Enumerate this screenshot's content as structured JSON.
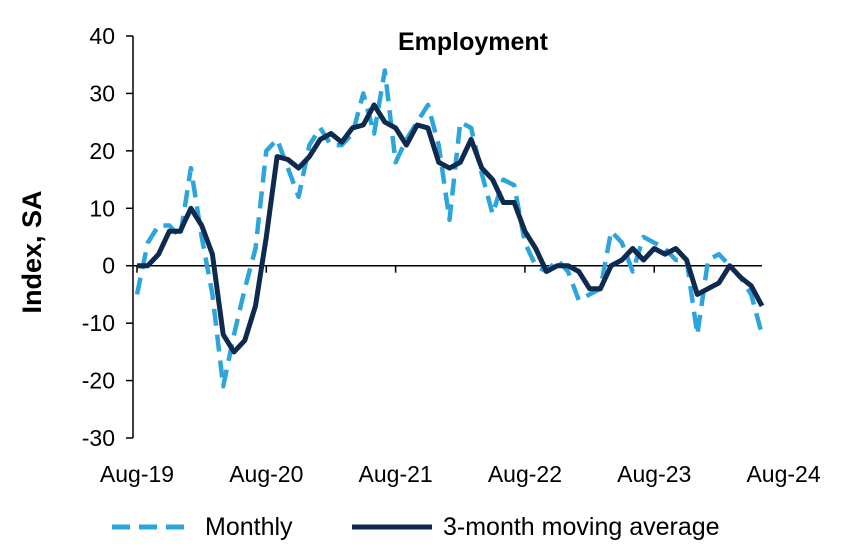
{
  "chart_data": {
    "type": "line",
    "title": "Employment",
    "xlabel": "",
    "ylabel": "Index, SA",
    "ylim": [
      -30,
      40
    ],
    "yticks": [
      40,
      30,
      20,
      10,
      0,
      -10,
      -20,
      -30
    ],
    "xtick_labels": [
      "Aug-19",
      "Aug-20",
      "Aug-21",
      "Aug-22",
      "Aug-23",
      "Aug-24"
    ],
    "x_start": "Aug-19",
    "x_end": "Aug-24",
    "colors": {
      "monthly": "#2ba5dc",
      "moving_average": "#0e2a4f",
      "axis": "#000000"
    },
    "legend": [
      "Monthly",
      "3-month moving average"
    ],
    "series": [
      {
        "name": "Monthly",
        "style": "dashed",
        "values": [
          -5,
          4,
          7,
          7,
          5,
          17,
          5,
          -5,
          -21,
          -12,
          -4,
          3,
          20,
          22,
          17,
          12,
          21,
          24,
          21,
          21,
          23,
          30,
          23,
          34,
          18,
          22,
          25,
          28,
          21,
          8,
          25,
          24,
          16,
          9,
          15,
          14,
          4,
          0,
          -1,
          1,
          -1,
          -6,
          -5,
          -4,
          6,
          4,
          -1,
          5,
          4,
          3,
          1,
          1,
          -12,
          1,
          2,
          0,
          -2,
          -5,
          -12
        ]
      },
      {
        "name": "3-month moving average",
        "style": "solid",
        "values": [
          0,
          0,
          2,
          6,
          6,
          10,
          7,
          2,
          -12,
          -15,
          -13,
          -7,
          5,
          19,
          18.5,
          17,
          19,
          22,
          23,
          21.5,
          24,
          24.5,
          28,
          25,
          24,
          21,
          24.5,
          24,
          18,
          17,
          18,
          22,
          17,
          15,
          11,
          11,
          6,
          3,
          -1,
          0,
          0,
          -1,
          -4,
          -4,
          0,
          1,
          3,
          1,
          3,
          2,
          3,
          1,
          -5,
          -4,
          -3,
          0,
          -2,
          -3.5,
          -7
        ]
      }
    ]
  }
}
